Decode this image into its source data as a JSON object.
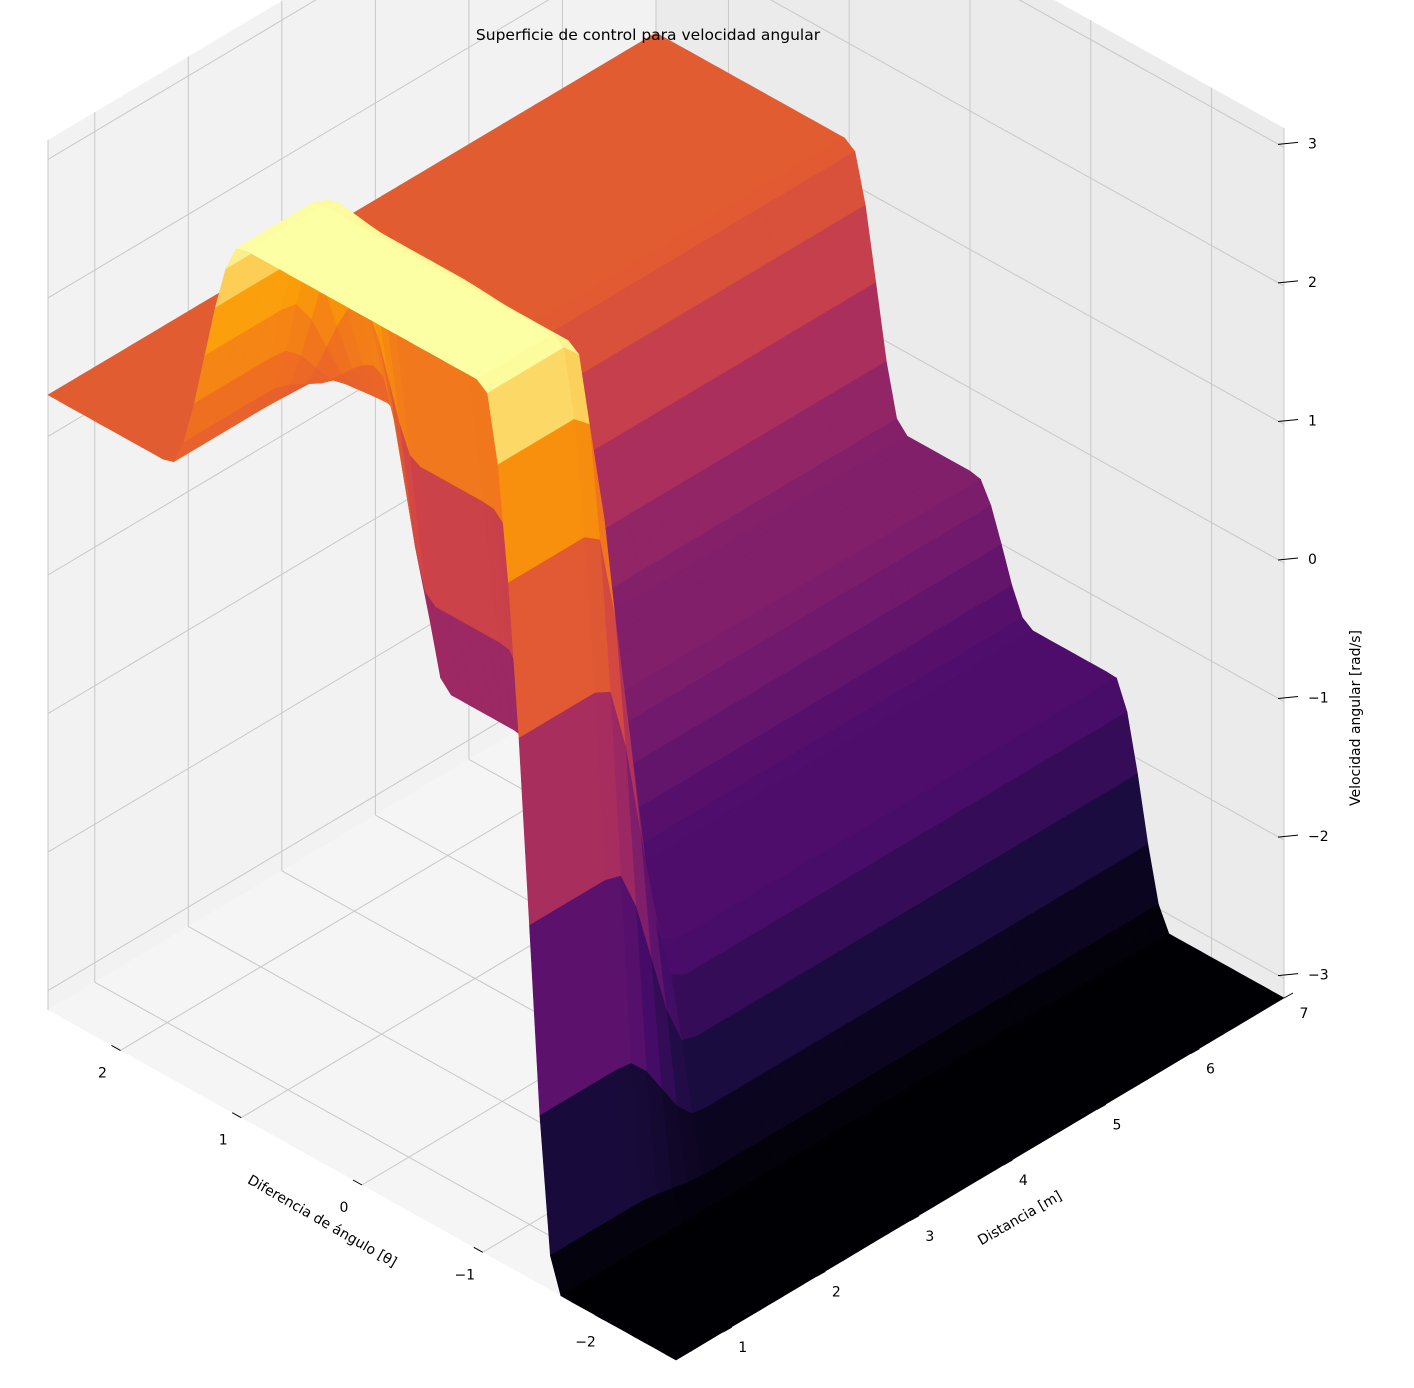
{
  "chart_data": {
    "type": "surface3d",
    "title": "Superficie de control para velocidad angular",
    "xlabel": "Diferencia de ángulo [θ]",
    "ylabel": "Distancia [m]",
    "zlabel": "Velocidad angular [rad/s]",
    "colormap": "inferno",
    "xlim": [
      -2.6,
      2.6
    ],
    "ylim": [
      0.5,
      7.0
    ],
    "zlim": [
      -3.14,
      3.14
    ],
    "x_ticks": [
      {
        "v": 2,
        "label": "2"
      },
      {
        "v": 1,
        "label": "1"
      },
      {
        "v": 0,
        "label": "0"
      },
      {
        "v": -1,
        "label": "−1"
      },
      {
        "v": -2,
        "label": "−2"
      }
    ],
    "y_ticks": [
      {
        "v": 1,
        "label": "1"
      },
      {
        "v": 2,
        "label": "2"
      },
      {
        "v": 3,
        "label": "3"
      },
      {
        "v": 4,
        "label": "4"
      },
      {
        "v": 5,
        "label": "5"
      },
      {
        "v": 6,
        "label": "6"
      },
      {
        "v": 7,
        "label": "7"
      }
    ],
    "z_ticks": [
      {
        "v": 3,
        "label": "3"
      },
      {
        "v": 2,
        "label": "2"
      },
      {
        "v": 1,
        "label": "1"
      },
      {
        "v": 0,
        "label": "0"
      },
      {
        "v": -1,
        "label": "−1"
      },
      {
        "v": -2,
        "label": "−2"
      },
      {
        "v": -3,
        "label": "−3"
      }
    ],
    "grid": true,
    "colors": {
      "pane_back": "#f2f2f2",
      "pane_side": "#ebebeb",
      "pane_floor": "#f5f5f5",
      "grid": "#c8c8c8"
    },
    "surface_profiles": [
      {
        "distance": 1.0,
        "plateaus": [
          [
            -2.6,
            -3.14
          ],
          [
            -1.2,
            -1.5
          ],
          [
            -0.05,
            -0.6
          ],
          [
            1.0,
            1.3
          ],
          [
            2.6,
            1.3
          ]
        ],
        "peak": {
          "x": [
            -1.0,
            1.0
          ],
          "value": 3.14
        }
      },
      {
        "distance": 3.0,
        "plateaus": [
          [
            -2.6,
            -3.14
          ],
          [
            -1.2,
            -1.5
          ],
          [
            -0.05,
            -0.6
          ],
          [
            1.0,
            1.3
          ],
          [
            2.6,
            1.3
          ]
        ]
      },
      {
        "distance": 7.0,
        "plateaus": [
          [
            -2.6,
            -3.14
          ],
          [
            -1.2,
            -1.5
          ],
          [
            -0.05,
            -0.6
          ],
          [
            1.0,
            1.3
          ],
          [
            2.6,
            1.3
          ]
        ]
      }
    ]
  }
}
